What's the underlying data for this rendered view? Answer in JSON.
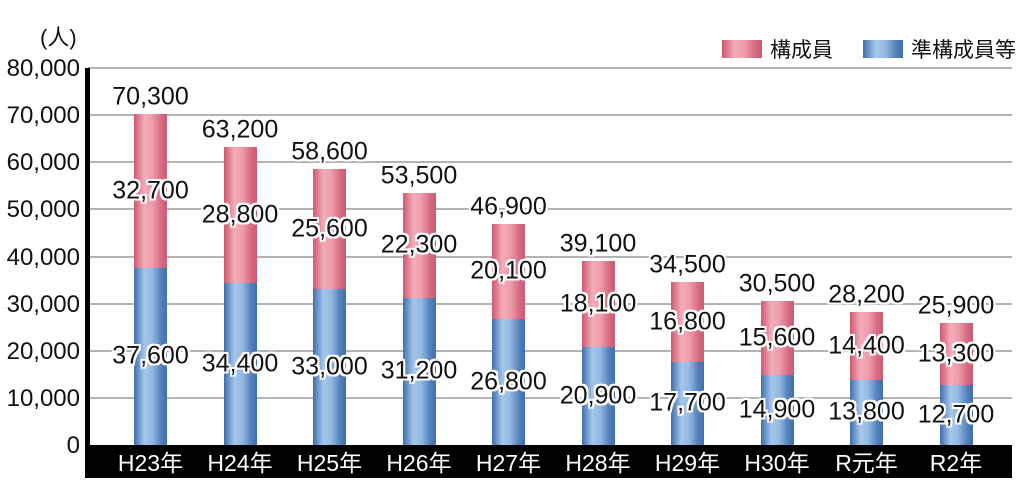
{
  "unit_label": "(人)",
  "legend": [
    {
      "label": "構成員",
      "color": "#e07a8f"
    },
    {
      "label": "準構成員等",
      "color": "#6a98cc"
    }
  ],
  "chart_data": {
    "type": "bar",
    "stacked": true,
    "unit_label": "(人)",
    "categories": [
      "H23年",
      "H24年",
      "H25年",
      "H26年",
      "H27年",
      "H28年",
      "H29年",
      "H30年",
      "R元年",
      "R2年"
    ],
    "series": [
      {
        "name": "準構成員等",
        "stack_position": "bottom",
        "values": [
          37600,
          34400,
          33000,
          31200,
          26800,
          20900,
          17700,
          14900,
          13800,
          12700
        ],
        "value_labels": [
          "37,600",
          "34,400",
          "33,000",
          "31,200",
          "26,800",
          "20,900",
          "17,700",
          "14,900",
          "13,800",
          "12,700"
        ]
      },
      {
        "name": "構成員",
        "stack_position": "top",
        "values": [
          32700,
          28800,
          25600,
          22300,
          20100,
          18100,
          16800,
          15600,
          14400,
          13300
        ],
        "value_labels": [
          "32,700",
          "28,800",
          "25,600",
          "22,300",
          "20,100",
          "18,100",
          "16,800",
          "15,600",
          "14,400",
          "13,300"
        ]
      }
    ],
    "totals": [
      70300,
      63200,
      58600,
      53500,
      46900,
      39100,
      34500,
      30500,
      28200,
      25900
    ],
    "total_labels": [
      "70,300",
      "63,200",
      "58,600",
      "53,500",
      "46,900",
      "39,100",
      "34,500",
      "30,500",
      "28,200",
      "25,900"
    ],
    "ylim": [
      0,
      80000
    ],
    "ytick_step": 10000,
    "ytick_labels": [
      "80,000",
      "70,000",
      "60,000",
      "50,000",
      "40,000",
      "30,000",
      "20,000",
      "10,000",
      "0"
    ],
    "grid": true,
    "legend_position": "top-right"
  },
  "colors": {
    "member_edge": "#ce5970",
    "member_highlight": "#f3acb8",
    "quasi_edge": "#3e6fae",
    "quasi_highlight": "#a6c6ec",
    "gridline": "#b3b3b3",
    "axis": "#000000",
    "band": "#000000",
    "band_text": "#ffffff",
    "label_text": "#111111",
    "label_outline": "#ffffff"
  }
}
